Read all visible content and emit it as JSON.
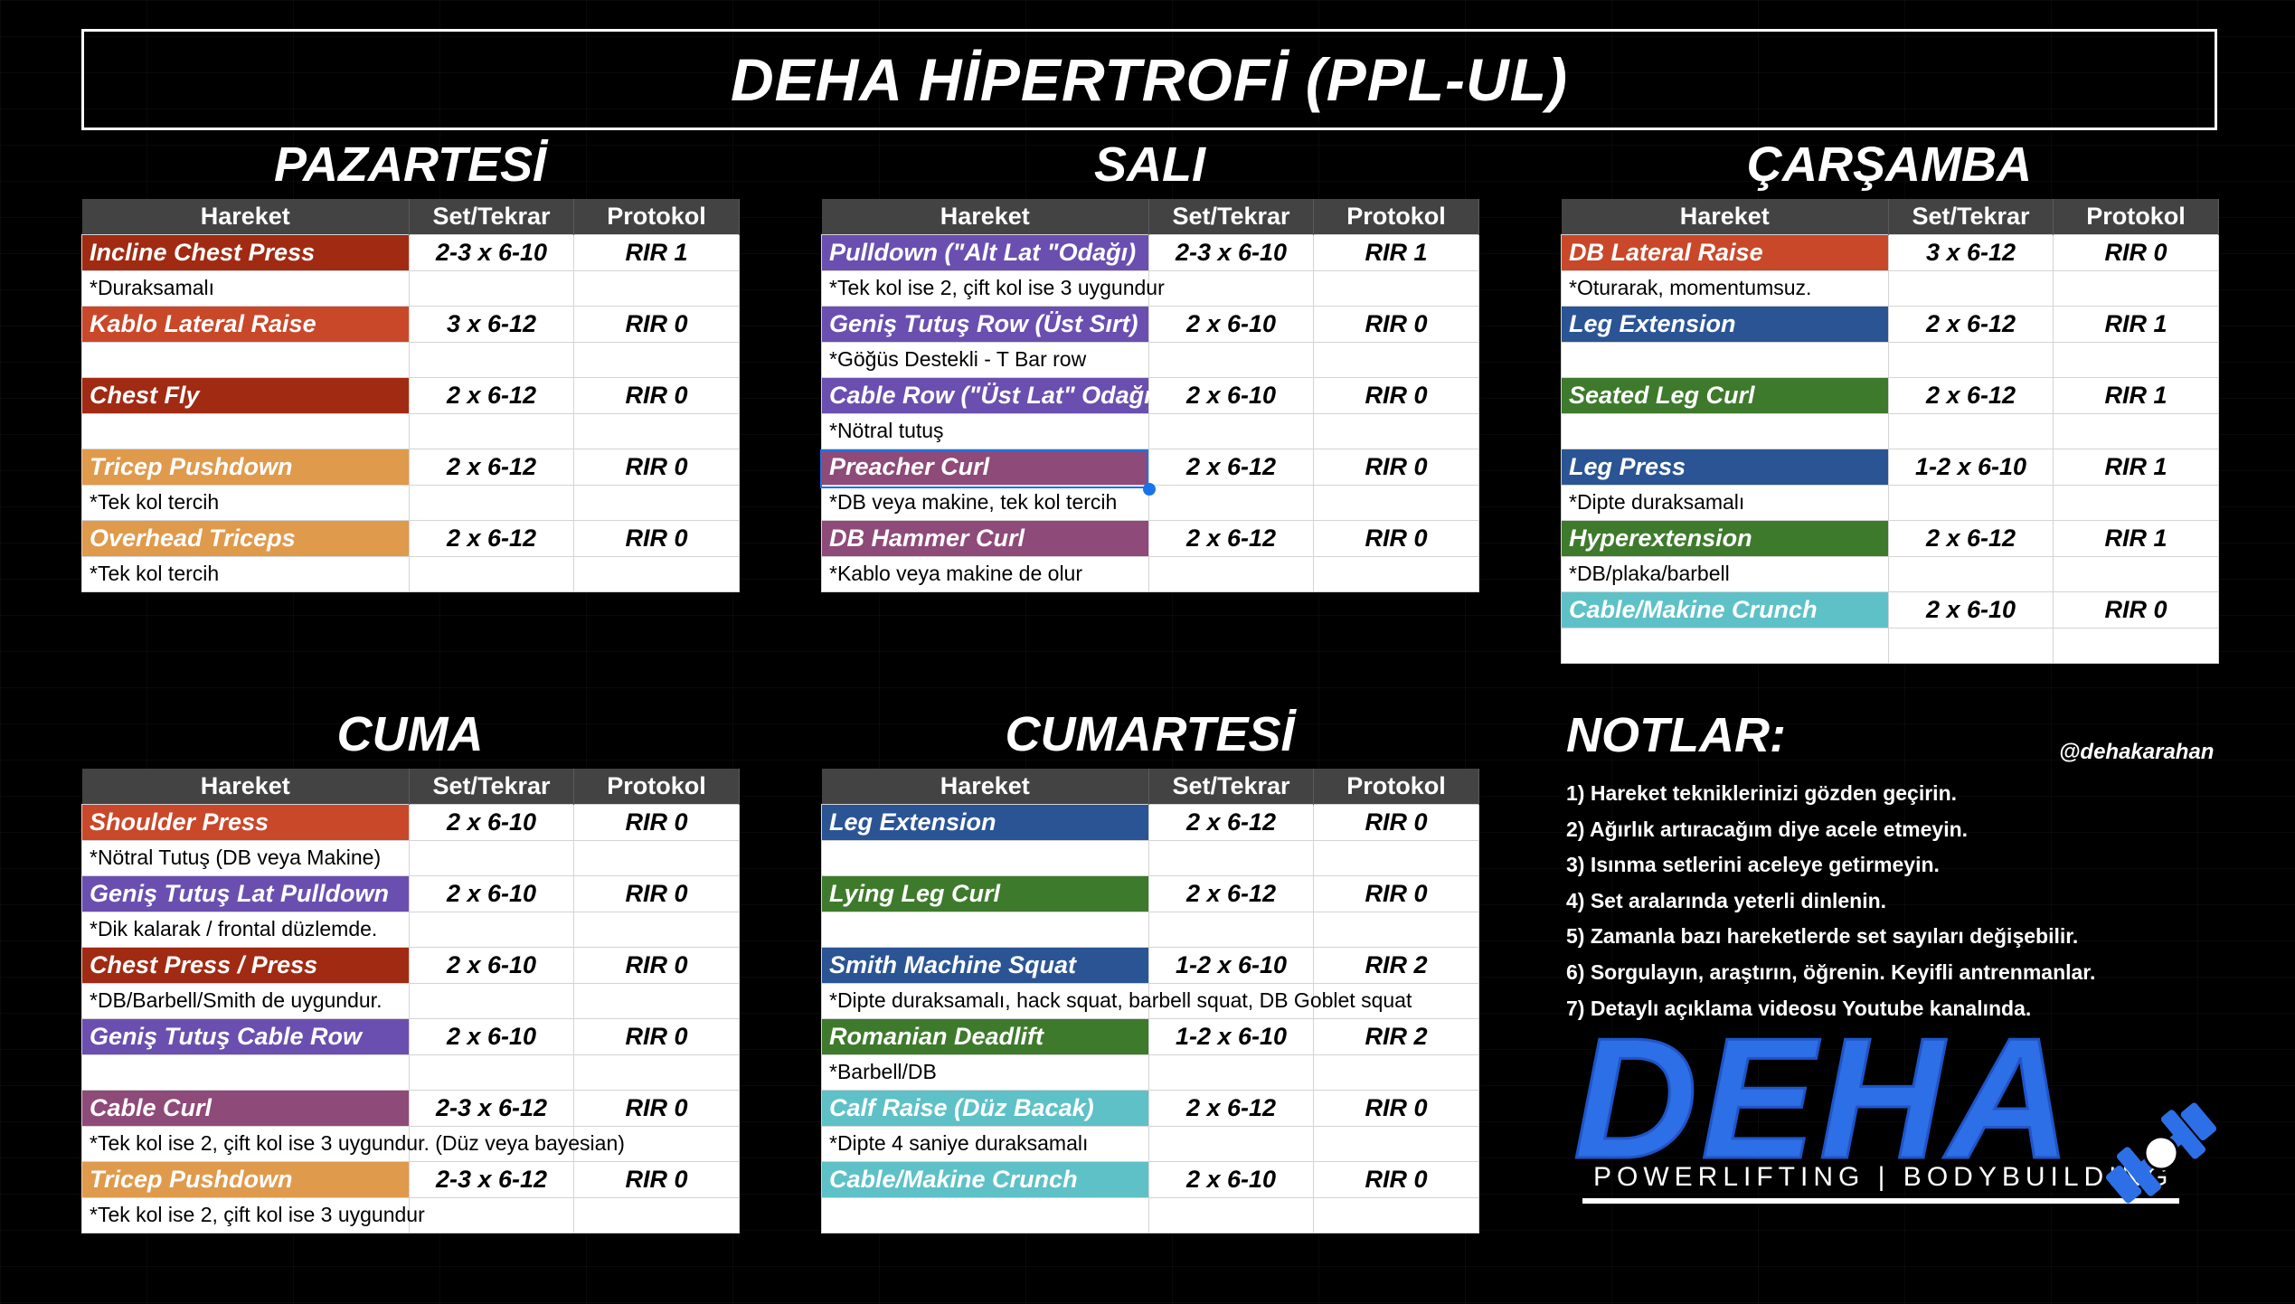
{
  "title": "DEHA HİPERTROFİ (PPL-UL)",
  "columns": [
    "Hareket",
    "Set/Tekrar",
    "Protokol"
  ],
  "colors": {
    "red": "#a12a12",
    "orange_red": "#c9482a",
    "orange": "#e09a4c",
    "purple": "#6a4fb0",
    "plum": "#8e4a78",
    "blue": "#2a5494",
    "green": "#3e7a2c",
    "teal": "#5ec1c7",
    "header": "#434343",
    "accent": "#2d6fe6"
  },
  "days": [
    {
      "name": "PAZARTESİ",
      "rows": [
        {
          "ex": "Incline Chest Press",
          "set": "2-3 x 6-10",
          "prot": "RIR 1",
          "color": "#a12a12"
        },
        {
          "note": "*Duraksamalı"
        },
        {
          "ex": "Kablo Lateral Raise",
          "set": "3 x 6-12",
          "prot": "RIR 0",
          "color": "#c9482a"
        },
        {
          "note": ""
        },
        {
          "ex": "Chest Fly",
          "set": "2 x 6-12",
          "prot": "RIR 0",
          "color": "#a12a12"
        },
        {
          "note": ""
        },
        {
          "ex": "Tricep Pushdown",
          "set": "2 x 6-12",
          "prot": "RIR 0",
          "color": "#e09a4c"
        },
        {
          "note": "*Tek kol tercih"
        },
        {
          "ex": "Overhead Triceps",
          "set": "2 x 6-12",
          "prot": "RIR 0",
          "color": "#e09a4c"
        },
        {
          "note": "*Tek kol tercih"
        }
      ]
    },
    {
      "name": "SALI",
      "rows": [
        {
          "ex": "Pulldown (\"Alt Lat \"Odağı)",
          "set": "2-3 x 6-10",
          "prot": "RIR 1",
          "color": "#6a4fb0"
        },
        {
          "note": "*Tek kol ise 2, çift kol ise 3 uygundur"
        },
        {
          "ex": "Geniş Tutuş Row (Üst Sırt)",
          "set": "2 x 6-10",
          "prot": "RIR 0",
          "color": "#6a4fb0"
        },
        {
          "note": "*Göğüs Destekli - T Bar row"
        },
        {
          "ex": "Cable Row (\"Üst Lat\" Odağı)",
          "set": "2 x 6-10",
          "prot": "RIR 0",
          "color": "#6a4fb0"
        },
        {
          "note": "*Nötral tutuş"
        },
        {
          "ex": "Preacher Curl",
          "set": "2 x 6-12",
          "prot": "RIR 0",
          "color": "#8e4a78"
        },
        {
          "note": "*DB veya makine, tek kol tercih"
        },
        {
          "ex": "DB Hammer Curl",
          "set": "2 x 6-12",
          "prot": "RIR 0",
          "color": "#8e4a78"
        },
        {
          "note": "*Kablo veya makine de olur"
        }
      ]
    },
    {
      "name": "ÇARŞAMBA",
      "rows": [
        {
          "ex": "DB Lateral Raise",
          "set": "3 x 6-12",
          "prot": "RIR 0",
          "color": "#c9482a"
        },
        {
          "note": "*Oturarak, momentumsuz."
        },
        {
          "ex": "Leg Extension",
          "set": "2 x 6-12",
          "prot": "RIR 1",
          "color": "#2a5494"
        },
        {
          "note": ""
        },
        {
          "ex": "Seated Leg Curl",
          "set": "2 x 6-12",
          "prot": "RIR 1",
          "color": "#3e7a2c"
        },
        {
          "note": ""
        },
        {
          "ex": "Leg Press",
          "set": "1-2 x 6-10",
          "prot": "RIR 1",
          "color": "#2a5494"
        },
        {
          "note": "*Dipte duraksamalı"
        },
        {
          "ex": "Hyperextension",
          "set": "2 x 6-12",
          "prot": "RIR 1",
          "color": "#3e7a2c"
        },
        {
          "note": "*DB/plaka/barbell"
        },
        {
          "ex": "Cable/Makine Crunch",
          "set": "2 x 6-10",
          "prot": "RIR 0",
          "color": "#5ec1c7"
        },
        {
          "note": ""
        }
      ]
    },
    {
      "name": "CUMA",
      "rows": [
        {
          "ex": "Shoulder Press",
          "set": "2 x 6-10",
          "prot": "RIR 0",
          "color": "#c9482a"
        },
        {
          "note": "*Nötral Tutuş (DB veya Makine)"
        },
        {
          "ex": "Geniş Tutuş Lat Pulldown",
          "set": "2 x 6-10",
          "prot": "RIR 0",
          "color": "#6a4fb0"
        },
        {
          "note": "*Dik kalarak / frontal düzlemde."
        },
        {
          "ex": "Chest Press / Press",
          "set": "2 x 6-10",
          "prot": "RIR 0",
          "color": "#a12a12"
        },
        {
          "note": "*DB/Barbell/Smith de uygundur."
        },
        {
          "ex": "Geniş Tutuş Cable Row",
          "set": "2 x 6-10",
          "prot": "RIR 0",
          "color": "#6a4fb0"
        },
        {
          "note": ""
        },
        {
          "ex": "Cable Curl",
          "set": "2-3 x 6-12",
          "prot": "RIR 0",
          "color": "#8e4a78"
        },
        {
          "note": "*Tek kol ise 2, çift kol ise 3 uygundur. (Düz veya bayesian)"
        },
        {
          "ex": "Tricep Pushdown",
          "set": "2-3 x 6-12",
          "prot": "RIR 0",
          "color": "#e09a4c"
        },
        {
          "note": "*Tek kol ise 2, çift kol ise 3 uygundur"
        }
      ]
    },
    {
      "name": "CUMARTESİ",
      "rows": [
        {
          "ex": "Leg Extension",
          "set": "2 x 6-12",
          "prot": "RIR 0",
          "color": "#2a5494"
        },
        {
          "note": ""
        },
        {
          "ex": "Lying Leg Curl",
          "set": "2 x 6-12",
          "prot": "RIR 0",
          "color": "#3e7a2c"
        },
        {
          "note": ""
        },
        {
          "ex": "Smith Machine Squat",
          "set": "1-2 x 6-10",
          "prot": "RIR 2",
          "color": "#2a5494"
        },
        {
          "note": "*Dipte duraksamalı, hack squat, barbell squat, DB Goblet squat"
        },
        {
          "ex": "Romanian Deadlift",
          "set": "1-2 x 6-10",
          "prot": "RIR 2",
          "color": "#3e7a2c"
        },
        {
          "note": "*Barbell/DB"
        },
        {
          "ex": "Calf Raise (Düz Bacak)",
          "set": "2 x 6-12",
          "prot": "RIR 0",
          "color": "#5ec1c7"
        },
        {
          "note": "*Dipte 4 saniye duraksamalı"
        },
        {
          "ex": "Cable/Makine Crunch",
          "set": "2 x 6-10",
          "prot": "RIR 0",
          "color": "#5ec1c7"
        },
        {
          "note": ""
        }
      ]
    }
  ],
  "notes": {
    "title": "NOTLAR:",
    "handle": "@dehakarahan",
    "items": [
      "1) Hareket tekniklerinizi gözden geçirin.",
      "2) Ağırlık artıracağım diye acele etmeyin.",
      "3) Isınma setlerini aceleye getirmeyin.",
      "4) Set aralarında yeterli dinlenin.",
      "5) Zamanla bazı hareketlerde set sayıları değişebilir.",
      "6) Sorgulayın, araştırın, öğrenin. Keyifli antrenmanlar.",
      "7) Detaylı açıklama videosu Youtube kanalında."
    ]
  },
  "logo": {
    "main": "DEHA",
    "sub": "POWERLIFTING | BODYBUILDING"
  }
}
